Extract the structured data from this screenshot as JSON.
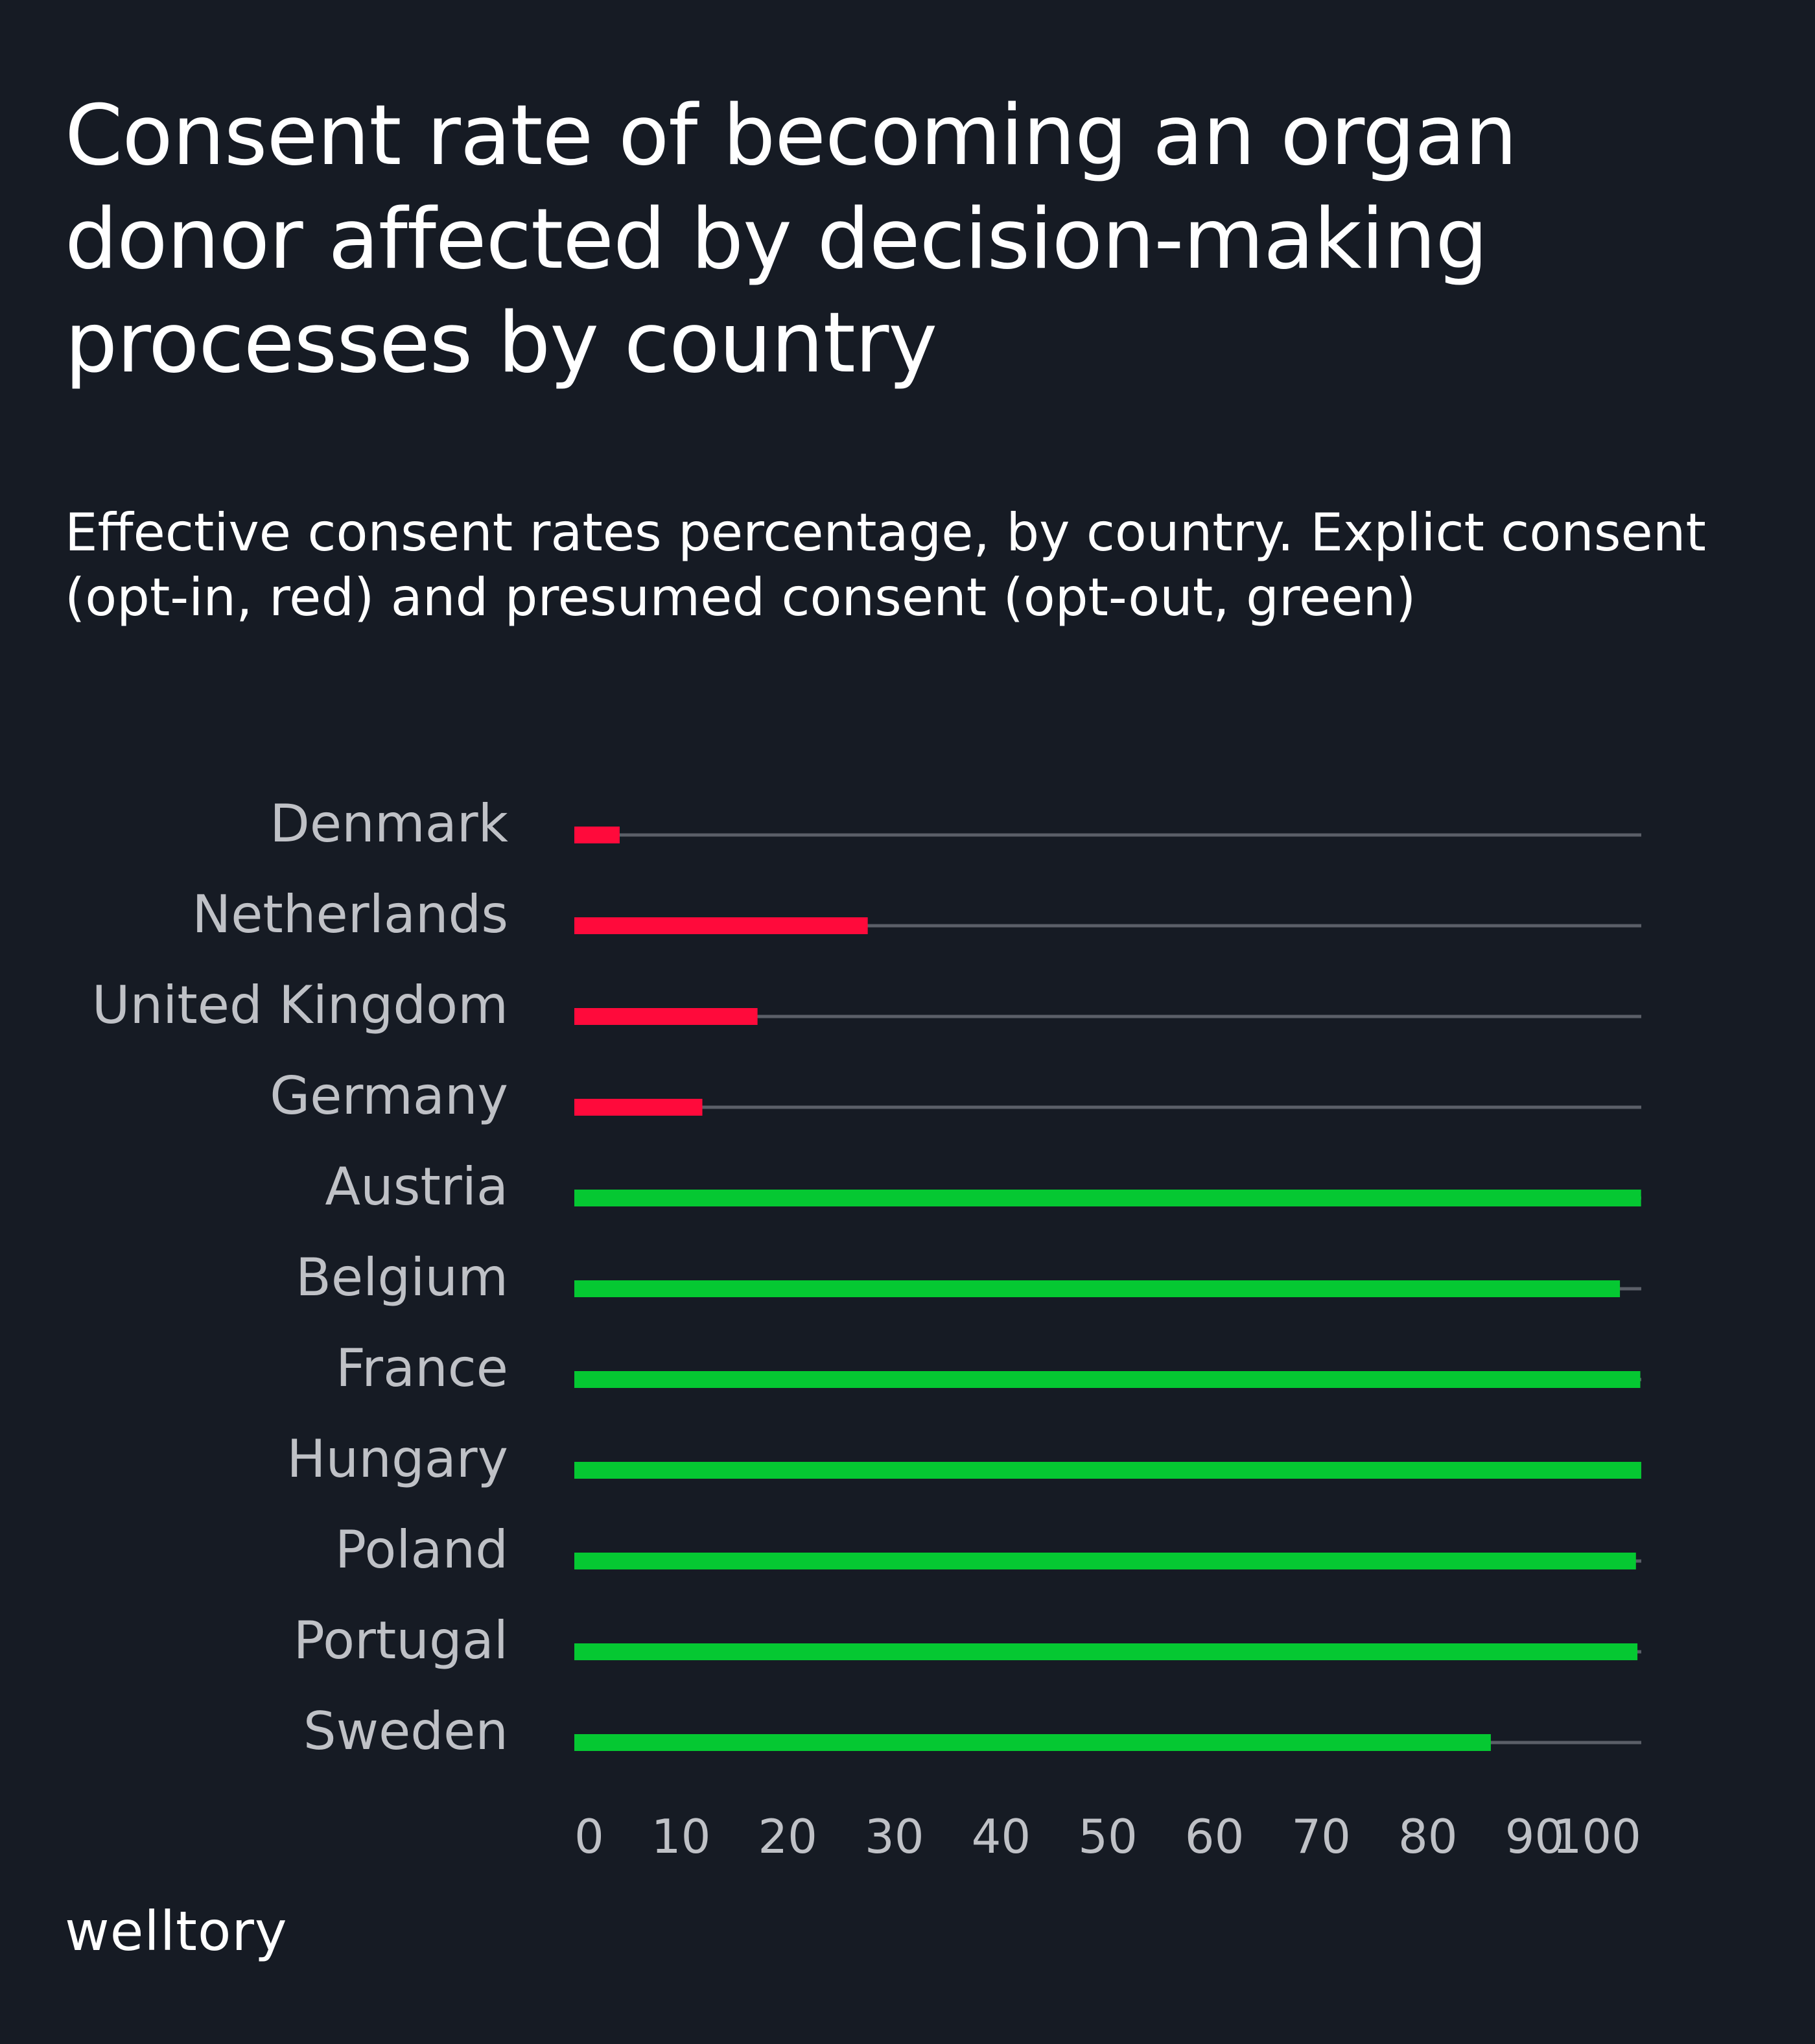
{
  "title": "Consent rate of becoming an organ donor affected by decision-making processes by country",
  "subtitle": "Effective consent rates percentage, by country. Explict consent (opt-in, red) and presumed consent (opt-out, green)",
  "brand": "welltory",
  "colors": {
    "background": "#161b24",
    "opt_in": "#ff0a3b",
    "opt_out": "#05c832",
    "track": "#5b5f68",
    "label": "#bfc1c6"
  },
  "chart_data": {
    "type": "bar",
    "orientation": "horizontal",
    "categories": [
      "Denmark",
      "Netherlands",
      "United Kingdom",
      "Germany",
      "Austria",
      "Belgium",
      "France",
      "Hungary",
      "Poland",
      "Portugal",
      "Sweden"
    ],
    "values": [
      4.25,
      27.5,
      17.17,
      12,
      99.98,
      98,
      99.91,
      99.997,
      99.5,
      99.64,
      85.9
    ],
    "consent_type": [
      "opt-in",
      "opt-in",
      "opt-in",
      "opt-in",
      "opt-out",
      "opt-out",
      "opt-out",
      "opt-out",
      "opt-out",
      "opt-out",
      "opt-out"
    ],
    "x_ticks": [
      "0",
      "10",
      "20",
      "30",
      "40",
      "50",
      "60",
      "70",
      "80",
      "90",
      "100"
    ],
    "xlim": [
      0,
      100
    ],
    "grid": false,
    "legend": "none"
  }
}
